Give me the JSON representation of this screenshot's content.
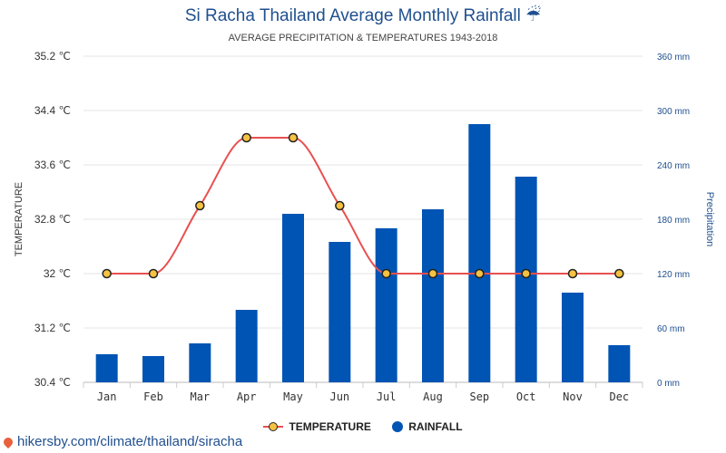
{
  "title": "Si Racha Thailand Average Monthly Rainfall ☔",
  "subtitle": "AVERAGE PRECIPITATION & TEMPERATURES 1943-2018",
  "footer": "hikersby.com/climate/thailand/siracha",
  "legend": {
    "temperature": "TEMPERATURE",
    "rainfall": "RAINFALL"
  },
  "chart_data": {
    "type": "bar",
    "categories": [
      "Jan",
      "Feb",
      "Mar",
      "Apr",
      "May",
      "Jun",
      "Jul",
      "Aug",
      "Sep",
      "Oct",
      "Nov",
      "Dec"
    ],
    "series": [
      {
        "name": "TEMPERATURE",
        "type": "line",
        "axis": "left",
        "unit": "℃",
        "values": [
          32,
          32,
          33,
          34,
          34,
          33,
          32,
          32,
          32,
          32,
          32,
          32
        ]
      },
      {
        "name": "RAINFALL",
        "type": "bar",
        "axis": "right",
        "unit": "mm",
        "values": [
          31,
          29,
          43,
          80,
          186,
          155,
          170,
          191,
          285,
          227,
          99,
          41
        ]
      }
    ],
    "ylabel_left": "TEMPERATURE",
    "ylabel_right": "Precipitation",
    "ylim_left": [
      30.4,
      35.2
    ],
    "ylim_right": [
      0,
      360
    ],
    "yticks_left": [
      "30.4 ℃",
      "31.2 ℃",
      "32 ℃",
      "32.8 ℃",
      "33.6 ℃",
      "34.4 ℃",
      "35.2 ℃"
    ],
    "yticks_right": [
      "0 mm",
      "60 mm",
      "120 mm",
      "180 mm",
      "240 mm",
      "300 mm",
      "360 mm"
    ],
    "grid": true,
    "legend_position": "bottom",
    "colors": {
      "bar": "#0054b4",
      "line": "#e85050",
      "marker": "#f5c242"
    }
  }
}
